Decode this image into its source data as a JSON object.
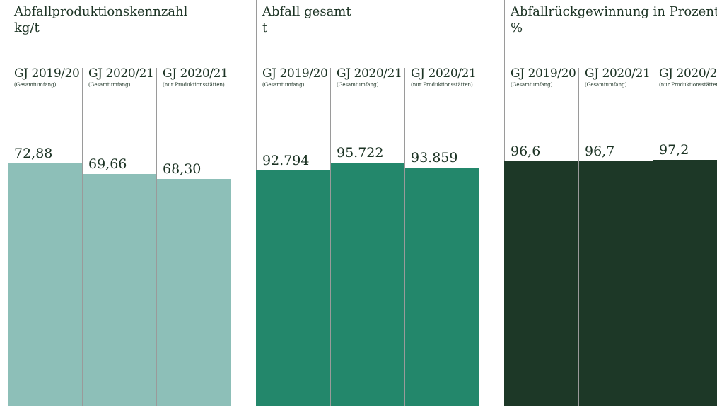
{
  "chart_data": [
    {
      "type": "bar",
      "title": "Abfallproduktionskennzahl",
      "unit": "kg/t",
      "color": "#8dbfb8",
      "categories": [
        {
          "label": "GJ 2019/20",
          "sub": "(Gesamtumfang)"
        },
        {
          "label": "GJ 2020/21",
          "sub": "(Gesamtumfang)"
        },
        {
          "label": "GJ 2020/21",
          "sub": "(nur Produktionsstätten)"
        }
      ],
      "values": [
        72.88,
        69.66,
        68.3
      ],
      "labels": [
        "72,88",
        "69,66",
        "68,30"
      ]
    },
    {
      "type": "bar",
      "title": "Abfall gesamt",
      "unit": "t",
      "color": "#23876b",
      "categories": [
        {
          "label": "GJ 2019/20",
          "sub": "(Gesamtumfang)"
        },
        {
          "label": "GJ 2020/21",
          "sub": "(Gesamtumfang)"
        },
        {
          "label": "GJ 2020/21",
          "sub": "(nur Produktionsstätten)"
        }
      ],
      "values": [
        92794,
        95722,
        93859
      ],
      "labels": [
        "92.794",
        "95.722",
        "93.859"
      ]
    },
    {
      "type": "bar",
      "title": "Abfallrückgewinnung in Prozent",
      "unit": "%",
      "color": "#1d3827",
      "categories": [
        {
          "label": "GJ 2019/20",
          "sub": "(Gesamtumfang)"
        },
        {
          "label": "GJ 2020/21",
          "sub": "(Gesamtumfang)"
        },
        {
          "label": "GJ 2020/2",
          "sub": "(nur Produktionsstätten)"
        }
      ],
      "values": [
        96.6,
        96.7,
        97.2
      ],
      "labels": [
        "96,6",
        "96,7",
        "97,2"
      ]
    }
  ]
}
